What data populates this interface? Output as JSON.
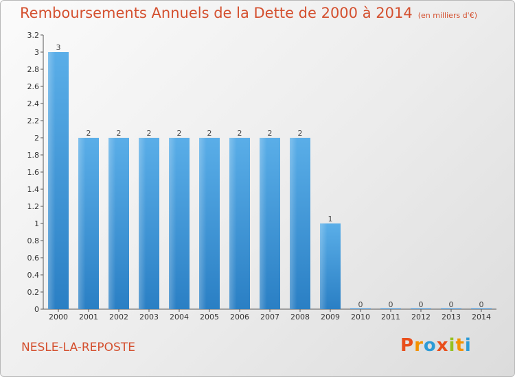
{
  "header": {
    "title": "Remboursements Annuels de la Dette de 2000 à 2014",
    "subtitle": "(en milliers d'€)"
  },
  "footer": {
    "commune": "NESLE-LA-REPOSTE",
    "logo": "Proxiti",
    "logo_colors": [
      "#e94e1b",
      "#f39200",
      "#2d9bd6",
      "#e94e1b",
      "#95c11f",
      "#f39200",
      "#2d9bd6"
    ]
  },
  "chart_data": {
    "type": "bar",
    "title": "Remboursements Annuels de la Dette de 2000 à 2014",
    "subtitle": "(en milliers d'€)",
    "xlabel": "",
    "ylabel": "",
    "categories": [
      "2000",
      "2001",
      "2002",
      "2003",
      "2004",
      "2005",
      "2006",
      "2007",
      "2008",
      "2009",
      "2010",
      "2011",
      "2012",
      "2013",
      "2014"
    ],
    "values": [
      3,
      2,
      2,
      2,
      2,
      2,
      2,
      2,
      2,
      1,
      0,
      0,
      0,
      0,
      0
    ],
    "data_labels": [
      "3",
      "2",
      "2",
      "2",
      "2",
      "2",
      "2",
      "2",
      "2",
      "1",
      "0",
      "0",
      "0",
      "0",
      "0"
    ],
    "ylim": [
      0,
      3.2
    ],
    "yticks": [
      0,
      0.2,
      0.4,
      0.6,
      0.8,
      1,
      1.2,
      1.4,
      1.6,
      1.8,
      2,
      2.2,
      2.4,
      2.6,
      2.8,
      3,
      3.2
    ],
    "ytick_labels": [
      "0",
      "0.2",
      "0.4",
      "0.6",
      "0.8",
      "1",
      "1.2",
      "1.4",
      "1.6",
      "1.8",
      "2",
      "2.2",
      "2.4",
      "2.6",
      "2.8",
      "3",
      "3.2"
    ],
    "grid": false,
    "bar_color": "#3a8fd6"
  }
}
